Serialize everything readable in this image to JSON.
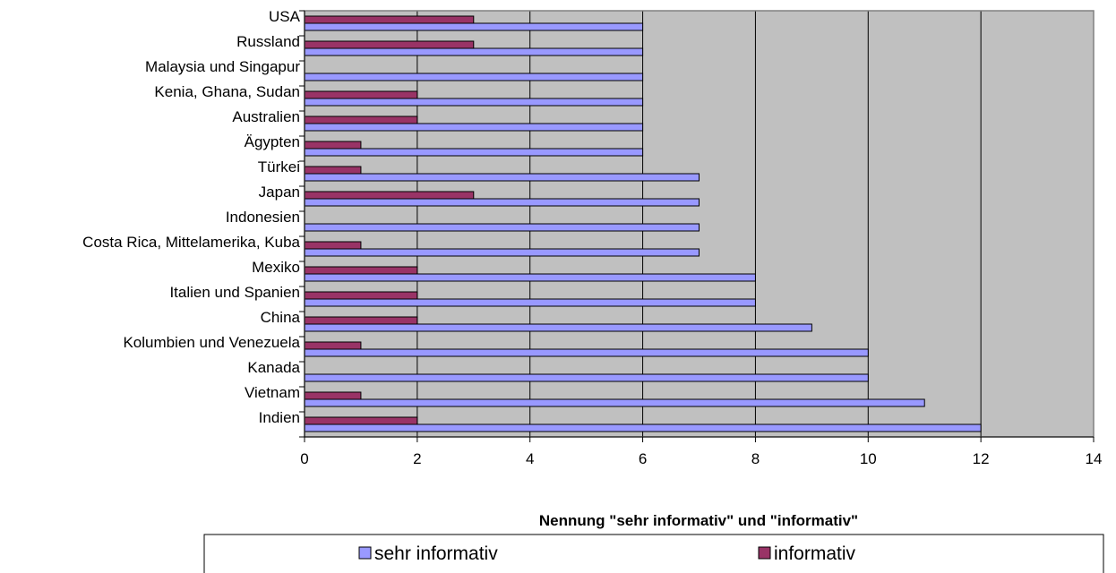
{
  "chart_data": {
    "type": "bar",
    "orientation": "horizontal",
    "categories": [
      "USA",
      "Russland",
      "Malaysia und Singapur",
      "Kenia, Ghana, Sudan",
      "Australien",
      "Ägypten",
      "Türkei",
      "Japan",
      "Indonesien",
      "Costa Rica, Mittelamerika, Kuba",
      "Mexiko",
      "Italien und Spanien",
      "China",
      "Kolumbien und Venezuela",
      "Kanada",
      "Vietnam",
      "Indien"
    ],
    "series": [
      {
        "name": "informativ",
        "color": "#993366",
        "values": [
          3,
          3,
          0,
          2,
          2,
          1,
          1,
          3,
          0,
          1,
          2,
          2,
          2,
          1,
          0,
          1,
          2
        ]
      },
      {
        "name": "sehr informativ",
        "color": "#9999ff",
        "values": [
          6,
          6,
          6,
          6,
          6,
          6,
          7,
          7,
          7,
          7,
          8,
          8,
          9,
          10,
          10,
          11,
          12
        ]
      }
    ],
    "xlabel": "Nennung \"sehr informativ\" und \"informativ\"",
    "xlim": [
      0,
      14
    ],
    "xticks": [
      "0",
      "2",
      "4",
      "6",
      "8",
      "10",
      "12",
      "14"
    ],
    "grid": true,
    "plot_background": "#c0c0c0",
    "legend": {
      "position": "bottom",
      "entries": [
        "sehr informativ",
        "informativ"
      ]
    }
  }
}
